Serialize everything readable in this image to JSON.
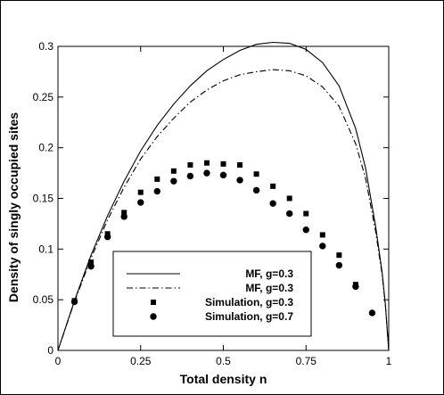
{
  "chart_data": {
    "type": "scatter",
    "title": "",
    "xlabel": "Total density n",
    "ylabel": "Density of singly occupied sites",
    "xlim": [
      0,
      1
    ],
    "ylim": [
      0,
      0.3
    ],
    "x_ticks": [
      "0",
      "0.25",
      "0.5",
      "0.75",
      "1"
    ],
    "y_ticks": [
      "0",
      "0.05",
      "0.1",
      "0.15",
      "0.2",
      "0.25",
      "0.3"
    ],
    "grid": false,
    "legend_position": "bottom-left",
    "series": [
      {
        "name": "MF, g=0.3",
        "style": "solid-line",
        "x": [
          0,
          0.05,
          0.1,
          0.15,
          0.2,
          0.25,
          0.3,
          0.35,
          0.4,
          0.45,
          0.5,
          0.55,
          0.6,
          0.65,
          0.7,
          0.75,
          0.8,
          0.85,
          0.9,
          0.93,
          0.96,
          0.98,
          0.99,
          1
        ],
        "y": [
          0,
          0.049,
          0.094,
          0.133,
          0.167,
          0.197,
          0.222,
          0.243,
          0.261,
          0.276,
          0.287,
          0.296,
          0.302,
          0.304,
          0.303,
          0.297,
          0.284,
          0.261,
          0.219,
          0.18,
          0.123,
          0.077,
          0.045,
          0
        ]
      },
      {
        "name": "MF, g=0.3",
        "style": "dash-dot-line",
        "x": [
          0,
          0.05,
          0.1,
          0.15,
          0.2,
          0.25,
          0.3,
          0.35,
          0.4,
          0.45,
          0.5,
          0.55,
          0.6,
          0.65,
          0.7,
          0.75,
          0.8,
          0.85,
          0.9,
          0.93,
          0.96,
          0.98,
          0.99,
          1
        ],
        "y": [
          0,
          0.048,
          0.091,
          0.129,
          0.161,
          0.189,
          0.211,
          0.229,
          0.245,
          0.257,
          0.266,
          0.272,
          0.275,
          0.277,
          0.276,
          0.271,
          0.26,
          0.241,
          0.204,
          0.17,
          0.118,
          0.075,
          0.044,
          0
        ]
      },
      {
        "name": "Simulation, g=0.3",
        "style": "square-markers",
        "x": [
          0.05,
          0.1,
          0.15,
          0.2,
          0.25,
          0.3,
          0.35,
          0.4,
          0.45,
          0.5,
          0.55,
          0.6,
          0.65,
          0.7,
          0.75,
          0.8,
          0.85,
          0.9
        ],
        "y": [
          0.049,
          0.087,
          0.115,
          0.136,
          0.156,
          0.169,
          0.177,
          0.183,
          0.185,
          0.184,
          0.183,
          0.174,
          0.162,
          0.15,
          0.135,
          0.114,
          0.094,
          0.065
        ]
      },
      {
        "name": "Simulation, g=0.7",
        "style": "circle-markers",
        "x": [
          0.05,
          0.1,
          0.15,
          0.2,
          0.25,
          0.3,
          0.35,
          0.4,
          0.45,
          0.5,
          0.55,
          0.6,
          0.65,
          0.7,
          0.75,
          0.8,
          0.85,
          0.9,
          0.95
        ],
        "y": [
          0.048,
          0.083,
          0.112,
          0.132,
          0.146,
          0.157,
          0.167,
          0.172,
          0.175,
          0.173,
          0.168,
          0.158,
          0.145,
          0.135,
          0.119,
          0.103,
          0.084,
          0.063,
          0.037
        ]
      }
    ]
  }
}
